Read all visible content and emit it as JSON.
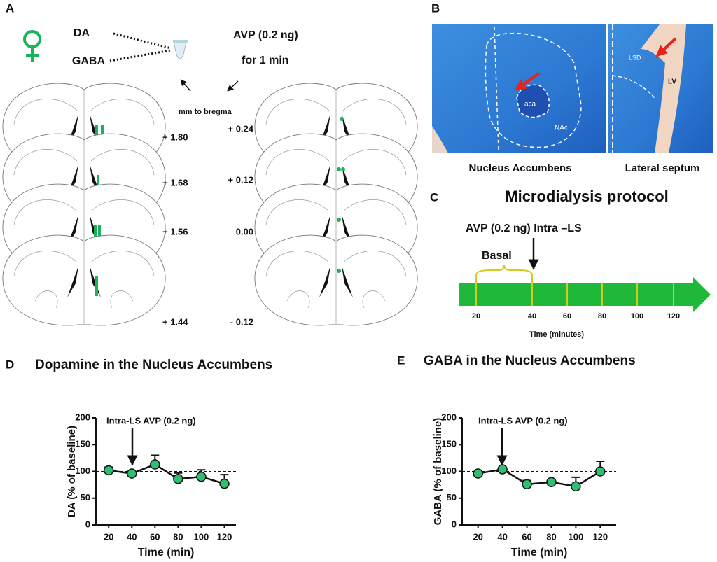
{
  "panel_a": {
    "label": "A",
    "injections": [
      "DA",
      "GABA"
    ],
    "treatment": [
      "AVP (0.2 ng)",
      "for 1 min"
    ],
    "coordinate_title": "mm to bregma",
    "left_coordinates": [
      "+ 1.80",
      "+ 1.68",
      "+ 1.56",
      "+ 1.44"
    ],
    "right_coordinates": [
      "+ 0.24",
      "+ 0.12",
      "0.00",
      "- 0.12"
    ]
  },
  "panel_b": {
    "label": "B",
    "images": [
      {
        "caption": "Nucleus Accumbens",
        "labels": [
          "aca",
          "NAc"
        ]
      },
      {
        "caption": "Lateral septum",
        "labels": [
          "LSD",
          "LV"
        ]
      }
    ]
  },
  "panel_c": {
    "label": "C",
    "title": "Microdialysis protocol",
    "injection": "AVP (0.2 ng) Intra –LS",
    "phase": "Basal",
    "ticks": [
      20,
      40,
      60,
      80,
      100,
      120
    ],
    "axis_label": "Time (minutes)"
  },
  "chart_data": [
    {
      "panel": "D",
      "type": "line",
      "title": "Dopamine in the Nucleus Accumbens",
      "annotation": "Intra-LS AVP (0.2 ng)",
      "xlabel": "Time (min)",
      "ylabel": "DA (% of baseline)",
      "x": [
        20,
        40,
        60,
        80,
        100,
        120
      ],
      "values": [
        102,
        96,
        113,
        86,
        90,
        77
      ],
      "errors": [
        6,
        3,
        17,
        11,
        13,
        17
      ],
      "color": "#2fbf71",
      "line_color": "#111111",
      "reference_line": 100,
      "xlim": [
        9,
        130
      ],
      "ylim": [
        0,
        200
      ],
      "xticks": [
        20,
        40,
        60,
        80,
        100,
        120
      ],
      "yticks": [
        0,
        50,
        100,
        150,
        200
      ]
    },
    {
      "panel": "E",
      "type": "line",
      "title": "GABA in the Nucleus Accumbens",
      "annotation": "Intra-LS AVP (0.2 ng)",
      "xlabel": "Time (min)",
      "ylabel": "GABA (% of baseline)",
      "x": [
        20,
        40,
        60,
        80,
        100,
        120
      ],
      "values": [
        96,
        104,
        76,
        80,
        72,
        100
      ],
      "errors": [
        2,
        2,
        7,
        3,
        17,
        19
      ],
      "color": "#2fbf71",
      "line_color": "#111111",
      "reference_line": 100,
      "xlim": [
        7,
        133
      ],
      "ylim": [
        0,
        200
      ],
      "xticks": [
        20,
        40,
        60,
        80,
        100,
        120
      ],
      "yticks": [
        0,
        50,
        100,
        150,
        200
      ]
    }
  ]
}
